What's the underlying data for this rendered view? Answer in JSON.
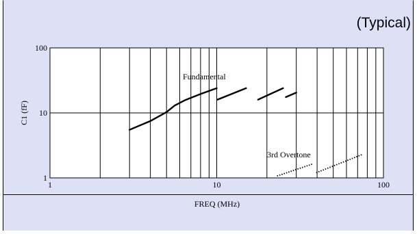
{
  "chart_data": {
    "type": "line",
    "title": "",
    "note": "(Typical)",
    "xlabel": "FREQ (MHz)",
    "ylabel": "C1 (fF)",
    "xscale": "log",
    "yscale": "log",
    "xlim": [
      1,
      100
    ],
    "ylim": [
      1,
      100
    ],
    "xticks": [
      1,
      10,
      100
    ],
    "yticks": [
      1,
      10,
      100
    ],
    "grid": true,
    "legend": "none",
    "colors": {
      "panel_bg": "#dee1f6",
      "plot_bg": "#ffffff",
      "line": "#000000"
    },
    "series": [
      {
        "name": "Fundamental",
        "style": "solid",
        "segments": [
          [
            [
              3.0,
              5.5
            ],
            [
              4.0,
              7.5
            ],
            [
              5.0,
              10.3
            ],
            [
              5.6,
              13.0
            ],
            [
              6.5,
              15.8
            ],
            [
              8.0,
              19.5
            ],
            [
              10.0,
              24.0
            ]
          ],
          [
            [
              10.1,
              16.0
            ],
            [
              15.0,
              24.0
            ]
          ],
          [
            [
              17.7,
              16.0
            ],
            [
              25.0,
              24.0
            ]
          ],
          [
            [
              26.0,
              17.5
            ],
            [
              30.0,
              20.5
            ]
          ]
        ]
      },
      {
        "name": "3rd Overtone",
        "style": "dotted",
        "segments": [
          [
            [
              23.0,
              1.07
            ],
            [
              38.0,
              1.65
            ]
          ],
          [
            [
              39.5,
              1.2
            ],
            [
              75.0,
              2.3
            ]
          ]
        ]
      }
    ]
  }
}
